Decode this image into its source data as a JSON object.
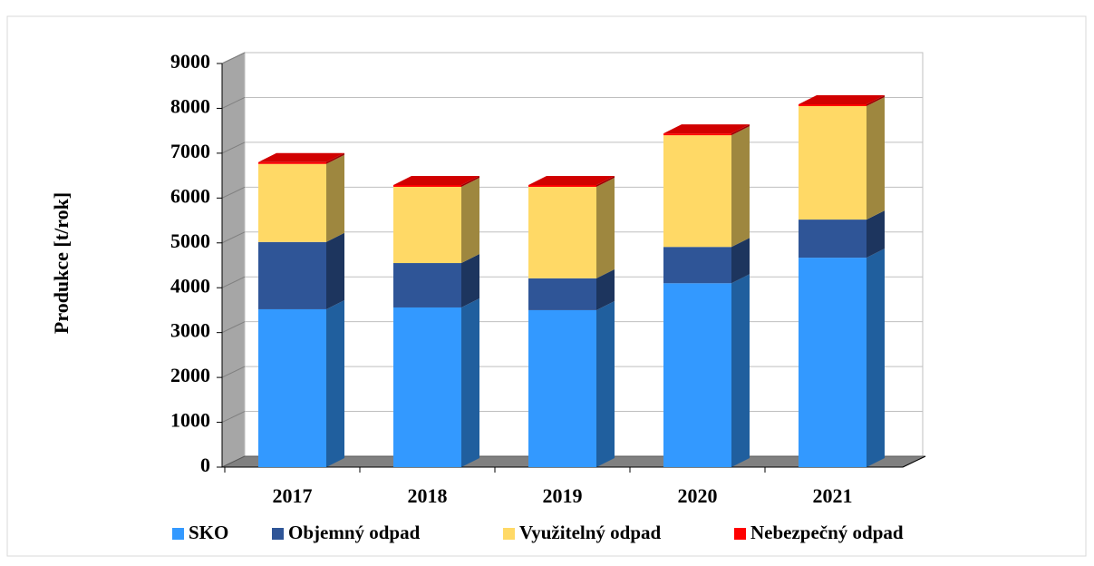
{
  "chart_data": {
    "type": "bar3d_stacked",
    "y_label": "Produkce [t/rok]",
    "categories": [
      "2017",
      "2018",
      "2019",
      "2020",
      "2021"
    ],
    "series": [
      {
        "name": "SKO",
        "color": "#3399ff",
        "values": [
          3520,
          3560,
          3500,
          4100,
          4670
        ]
      },
      {
        "name": "Objemný odpad",
        "color": "#2f5597",
        "values": [
          1500,
          990,
          710,
          810,
          850
        ]
      },
      {
        "name": "Využitelný odpad",
        "color": "#ffd966",
        "values": [
          1740,
          1700,
          2040,
          2490,
          2530
        ]
      },
      {
        "name": "Nebezpečný odpad",
        "color": "#ff0000",
        "values": [
          40,
          40,
          40,
          40,
          40
        ]
      }
    ],
    "ylim": [
      0,
      9000
    ],
    "yticks": [
      0,
      1000,
      2000,
      3000,
      4000,
      5000,
      6000,
      7000,
      8000,
      9000
    ],
    "grid": true
  }
}
